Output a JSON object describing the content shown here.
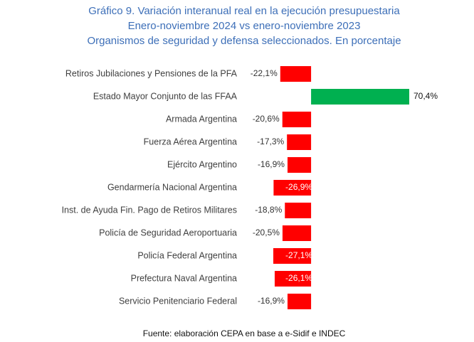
{
  "chart_data": {
    "type": "bar",
    "orientation": "horizontal",
    "title": "Gráfico 9. Variación interanual real en la ejecución presupuestaria",
    "subtitle": [
      "Enero-noviembre 2024 vs enero-noviembre 2023",
      "Organismos de seguridad y defensa seleccionados. En porcentaje"
    ],
    "source": "Fuente: elaboración CEPA en base a e-Sidif e INDEC",
    "categories": [
      "Retiros Jubilaciones y Pensiones de la PFA",
      "Estado Mayor Conjunto de las FFAA",
      "Armada Argentina",
      "Fuerza Aérea Argentina",
      "Ejército Argentino",
      "Gendarmería Nacional Argentina",
      "Inst. de Ayuda Fin. Pago de Retiros Militares",
      "Policía de Seguridad Aeroportuaria",
      "Policía Federal Argentina",
      "Prefectura Naval Argentina",
      "Servicio Penitenciario Federal"
    ],
    "values": [
      -22.1,
      70.4,
      -20.6,
      -17.3,
      -16.9,
      -26.9,
      -18.8,
      -20.5,
      -27.1,
      -26.1,
      -16.9
    ],
    "value_labels": [
      "-22,1%",
      "70,4%",
      "-20,6%",
      "-17,3%",
      "-16,9%",
      "-26,9%",
      "-18,8%",
      "-20,5%",
      "-27,1%",
      "-26,1%",
      "-16,9%"
    ],
    "color_negative": "#ff0000",
    "color_positive": "#00b050"
  }
}
